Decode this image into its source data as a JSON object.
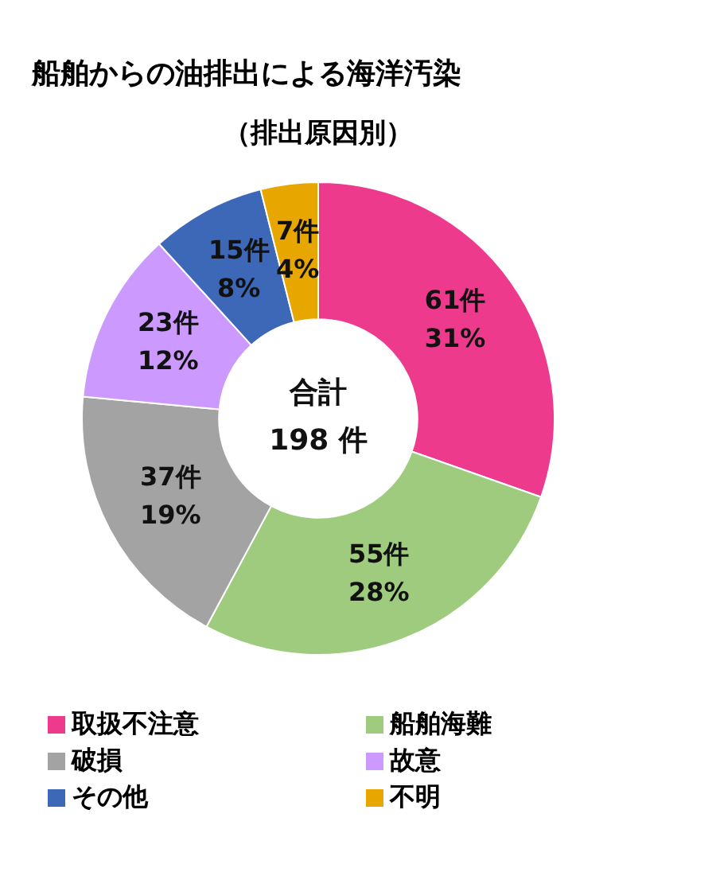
{
  "chart_data": {
    "type": "donut",
    "title": "船舶からの油排出による海洋汚染",
    "subtitle": "（排出原因別）",
    "categories": [
      "取扱不注意",
      "船舶海難",
      "破損",
      "故意",
      "その他",
      "不明"
    ],
    "values": [
      31,
      28,
      19,
      12,
      8,
      4
    ],
    "value_labels": [
      "61件\n31%",
      "55件\n28%",
      "37件\n19%",
      "23件\n12%",
      "15件\n8%",
      "7件\n4%"
    ],
    "colors": [
      "#ee3a8c",
      "#9fcb7f",
      "#a3a3a3",
      "#cc99ff",
      "#3d68b8",
      "#e8a600"
    ],
    "annotations": [
      "合計",
      "198 件"
    ],
    "legend": "bottom"
  }
}
